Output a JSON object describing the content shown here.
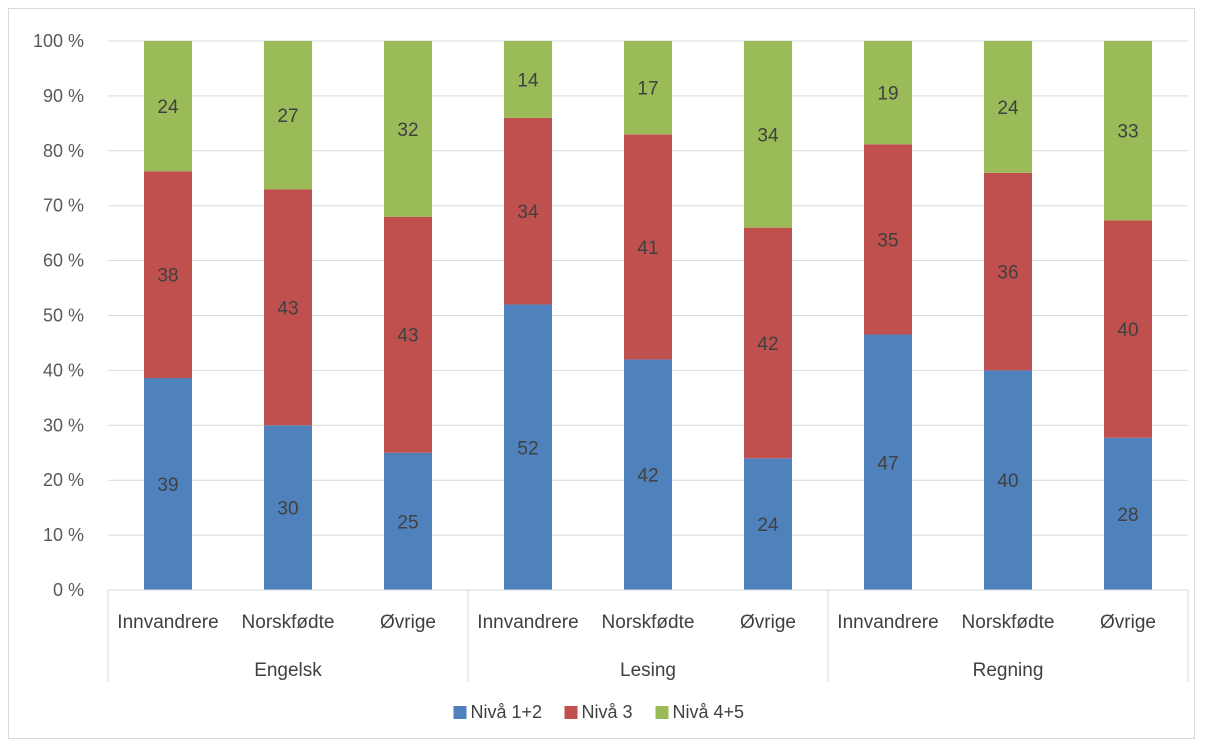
{
  "chart_data": {
    "type": "bar",
    "stacked": true,
    "percent_stacked": true,
    "title": "",
    "xlabel": "",
    "ylabel": "",
    "ylim": [
      0,
      100
    ],
    "y_ticks": [
      "0 %",
      "10 %",
      "20 %",
      "30 %",
      "40 %",
      "50 %",
      "60 %",
      "70 %",
      "80 %",
      "90 %",
      "100 %"
    ],
    "grid": true,
    "legend_position": "bottom",
    "groups": [
      "Engelsk",
      "Lesing",
      "Regning"
    ],
    "categories": [
      "Innvandrere",
      "Norskfødte",
      "Øvrige",
      "Innvandrere",
      "Norskfødte",
      "Øvrige",
      "Innvandrere",
      "Norskfødte",
      "Øvrige"
    ],
    "series": [
      {
        "name": "Nivå 1+2",
        "color": "#4f81bd",
        "values": [
          39,
          30,
          25,
          52,
          42,
          24,
          47,
          40,
          28
        ]
      },
      {
        "name": "Nivå 3",
        "color": "#c0504d",
        "values": [
          38,
          43,
          43,
          34,
          41,
          42,
          35,
          36,
          40
        ]
      },
      {
        "name": "Nivå 4+5",
        "color": "#9bbb59",
        "values": [
          24,
          27,
          32,
          14,
          17,
          34,
          19,
          24,
          33
        ]
      }
    ]
  }
}
